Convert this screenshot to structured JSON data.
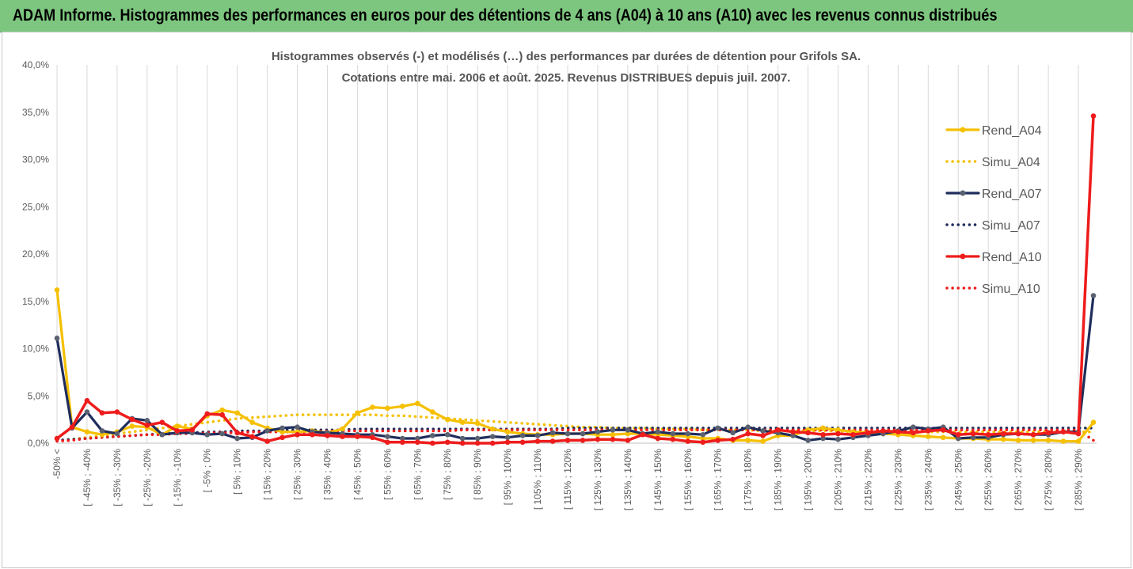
{
  "banner": {
    "title": "ADAM Informe. Histogrammes des performances en euros pour des détentions de 4 ans (A04) à 10 ans (A10) avec les revenus connus distribués"
  },
  "chart_data": {
    "type": "line",
    "title": "Histogrammes observés (-) et modélisés (…) des performances par durées de détention pour Grifols SA.",
    "subtitle": "Cotations entre mai. 2006 et août. 2025. Revenus DISTRIBUES depuis juil. 2007.",
    "ylim": [
      0,
      0.4
    ],
    "yticks": [
      "0,0%",
      "5,0%",
      "10,0%",
      "15,0%",
      "20,0%",
      "25,0%",
      "30,0%",
      "35,0%",
      "40,0%"
    ],
    "grid": "vertical",
    "legend_position": "right",
    "x_labels_shown": [
      "-50% <",
      "[ -45% ; -40%",
      "[ -35% ; -30%",
      "[ -25% ; -20%",
      "[ -15% ; -10%",
      "[ -5% ; 0%",
      "[ 5% ; 10%",
      "[ 15% ; 20%",
      "[ 25% ; 30%",
      "[ 35% ; 40%",
      "[ 45% ; 50%",
      "[ 55% ; 60%",
      "[ 65% ; 70%",
      "[ 75% ; 80%",
      "[ 85% ; 90%",
      "[ 95% ; 100%",
      "[ 105% ; 110%",
      "[ 115% ; 120%",
      "[ 125% ; 130%",
      "[ 135% ; 140%",
      "[ 145% ; 150%",
      "[ 155% ; 160%",
      "[ 165% ; 170%",
      "[ 175% ; 180%",
      "[ 185% ; 190%",
      "[ 195% ; 200%",
      "[ 205% ; 210%",
      "[ 215% ; 220%",
      "[ 225% ; 230%",
      "[ 235% ; 240%",
      "[ 245% ; 250%",
      "[ 255% ; 260%",
      "[ 265% ; 270%",
      "[ 275% ; 280%",
      "[ 285% ; 290%"
    ],
    "n_categories": 70,
    "series": [
      {
        "name": "Rend_A04",
        "color": "#f5c000",
        "style": "solid",
        "markers": true,
        "values": [
          0.162,
          0.017,
          0.012,
          0.009,
          0.012,
          0.018,
          0.017,
          0.009,
          0.018,
          0.015,
          0.029,
          0.035,
          0.032,
          0.022,
          0.016,
          0.012,
          0.012,
          0.013,
          0.011,
          0.015,
          0.032,
          0.038,
          0.037,
          0.039,
          0.042,
          0.033,
          0.025,
          0.022,
          0.021,
          0.015,
          0.012,
          0.01,
          0.009,
          0.009,
          0.01,
          0.01,
          0.009,
          0.009,
          0.01,
          0.01,
          0.009,
          0.008,
          0.007,
          0.005,
          0.005,
          0.003,
          0.003,
          0.002,
          0.008,
          0.008,
          0.014,
          0.016,
          0.014,
          0.012,
          0.011,
          0.01,
          0.009,
          0.008,
          0.007,
          0.006,
          0.005,
          0.005,
          0.004,
          0.004,
          0.003,
          0.003,
          0.003,
          0.002,
          0.002,
          0.022
        ]
      },
      {
        "name": "Simu_A04",
        "color": "#f5c000",
        "style": "dotted",
        "markers": false,
        "values": [
          0.003,
          0.004,
          0.006,
          0.008,
          0.01,
          0.012,
          0.014,
          0.016,
          0.018,
          0.02,
          0.022,
          0.024,
          0.026,
          0.027,
          0.028,
          0.029,
          0.03,
          0.03,
          0.03,
          0.03,
          0.03,
          0.03,
          0.029,
          0.029,
          0.028,
          0.027,
          0.026,
          0.025,
          0.024,
          0.023,
          0.022,
          0.021,
          0.02,
          0.019,
          0.018,
          0.017,
          0.017,
          0.016,
          0.016,
          0.016,
          0.015,
          0.015,
          0.015,
          0.014,
          0.014,
          0.014,
          0.014,
          0.013,
          0.013,
          0.013,
          0.013,
          0.013,
          0.013,
          0.012,
          0.012,
          0.012,
          0.012,
          0.012,
          0.012,
          0.012,
          0.012,
          0.012,
          0.012,
          0.012,
          0.012,
          0.012,
          0.012,
          0.012,
          0.012,
          0.012
        ]
      },
      {
        "name": "Rend_A07",
        "color": "#1f2d5c",
        "style": "solid",
        "markers": true,
        "values": [
          0.111,
          0.016,
          0.033,
          0.013,
          0.01,
          0.026,
          0.024,
          0.009,
          0.011,
          0.011,
          0.009,
          0.01,
          0.005,
          0.006,
          0.013,
          0.016,
          0.017,
          0.012,
          0.011,
          0.01,
          0.009,
          0.009,
          0.007,
          0.005,
          0.005,
          0.008,
          0.009,
          0.005,
          0.005,
          0.007,
          0.006,
          0.008,
          0.008,
          0.011,
          0.01,
          0.01,
          0.012,
          0.014,
          0.014,
          0.01,
          0.012,
          0.01,
          0.01,
          0.009,
          0.016,
          0.011,
          0.017,
          0.013,
          0.011,
          0.008,
          0.003,
          0.005,
          0.004,
          0.006,
          0.008,
          0.01,
          0.013,
          0.017,
          0.015,
          0.017,
          0.005,
          0.006,
          0.006,
          0.009,
          0.01,
          0.009,
          0.009,
          0.012,
          0.012,
          0.156
        ]
      },
      {
        "name": "Simu_A07",
        "color": "#1f2d5c",
        "style": "dotted",
        "markers": false,
        "values": [
          0.003,
          0.004,
          0.005,
          0.006,
          0.007,
          0.008,
          0.009,
          0.01,
          0.011,
          0.011,
          0.012,
          0.012,
          0.013,
          0.013,
          0.013,
          0.014,
          0.014,
          0.014,
          0.014,
          0.014,
          0.015,
          0.015,
          0.015,
          0.015,
          0.015,
          0.015,
          0.015,
          0.015,
          0.015,
          0.015,
          0.015,
          0.015,
          0.015,
          0.015,
          0.016,
          0.016,
          0.016,
          0.016,
          0.016,
          0.016,
          0.016,
          0.016,
          0.016,
          0.016,
          0.016,
          0.016,
          0.016,
          0.016,
          0.016,
          0.016,
          0.016,
          0.016,
          0.016,
          0.016,
          0.016,
          0.016,
          0.016,
          0.016,
          0.016,
          0.016,
          0.016,
          0.016,
          0.016,
          0.016,
          0.016,
          0.016,
          0.016,
          0.016,
          0.016,
          0.016
        ]
      },
      {
        "name": "Rend_A10",
        "color": "#ee1c1c",
        "style": "solid",
        "markers": true,
        "values": [
          0.005,
          0.017,
          0.045,
          0.032,
          0.033,
          0.025,
          0.019,
          0.022,
          0.013,
          0.014,
          0.031,
          0.03,
          0.011,
          0.007,
          0.002,
          0.006,
          0.009,
          0.009,
          0.008,
          0.007,
          0.007,
          0.006,
          0.001,
          0.001,
          0.001,
          0.0,
          0.001,
          0.0,
          0.0,
          0.0,
          0.001,
          0.001,
          0.002,
          0.002,
          0.003,
          0.003,
          0.004,
          0.004,
          0.003,
          0.009,
          0.005,
          0.004,
          0.002,
          0.001,
          0.003,
          0.004,
          0.01,
          0.008,
          0.014,
          0.012,
          0.011,
          0.009,
          0.01,
          0.009,
          0.011,
          0.013,
          0.012,
          0.011,
          0.013,
          0.014,
          0.009,
          0.01,
          0.009,
          0.01,
          0.01,
          0.009,
          0.011,
          0.012,
          0.01,
          0.346
        ]
      },
      {
        "name": "Simu_A10",
        "color": "#ee1c1c",
        "style": "dotted",
        "markers": false,
        "values": [
          0.002,
          0.003,
          0.005,
          0.006,
          0.007,
          0.008,
          0.009,
          0.009,
          0.01,
          0.01,
          0.011,
          0.011,
          0.011,
          0.012,
          0.012,
          0.012,
          0.012,
          0.012,
          0.013,
          0.013,
          0.013,
          0.013,
          0.013,
          0.013,
          0.013,
          0.013,
          0.013,
          0.014,
          0.014,
          0.014,
          0.014,
          0.014,
          0.014,
          0.014,
          0.014,
          0.014,
          0.014,
          0.014,
          0.014,
          0.014,
          0.014,
          0.014,
          0.014,
          0.014,
          0.014,
          0.014,
          0.014,
          0.014,
          0.014,
          0.014,
          0.014,
          0.014,
          0.014,
          0.014,
          0.014,
          0.014,
          0.014,
          0.014,
          0.014,
          0.014,
          0.014,
          0.014,
          0.014,
          0.014,
          0.014,
          0.014,
          0.014,
          0.014,
          0.014,
          0.003
        ]
      }
    ]
  }
}
